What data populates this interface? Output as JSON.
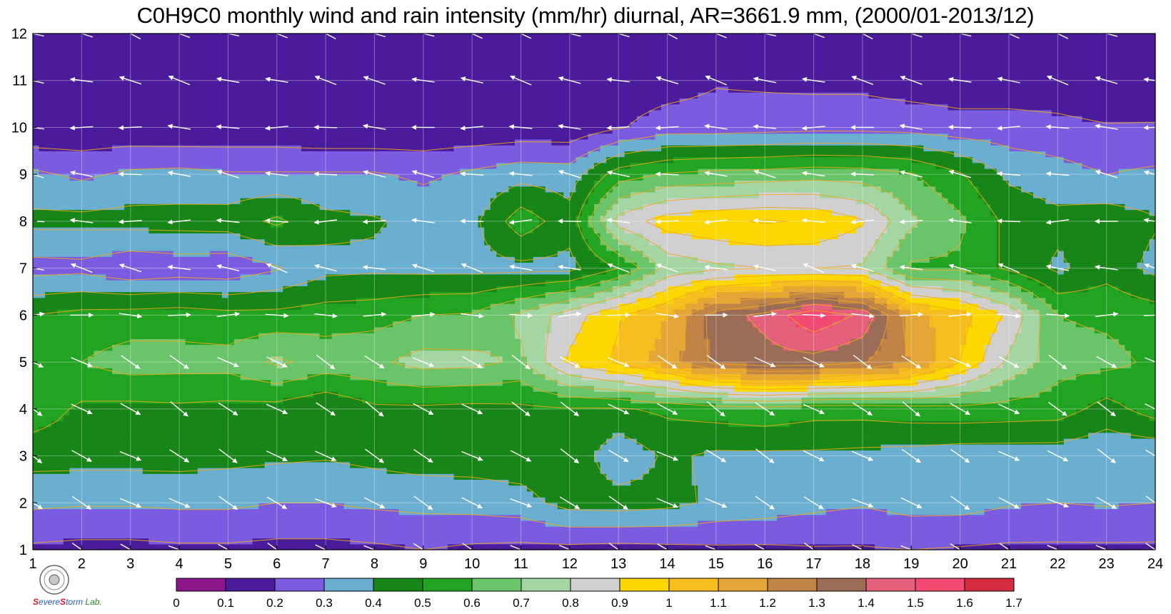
{
  "chart_data": {
    "type": "heatmap",
    "title": "C0H9C0 monthly wind and rain intensity (mm/hr) diurnal, AR=3661.9 mm, (2000/01-2013/12)",
    "x_ticks": [
      "1",
      "2",
      "3",
      "4",
      "5",
      "6",
      "7",
      "8",
      "9",
      "10",
      "11",
      "12",
      "13",
      "14",
      "15",
      "16",
      "17",
      "18",
      "19",
      "20",
      "21",
      "22",
      "23",
      "24"
    ],
    "y_ticks": [
      "1",
      "2",
      "3",
      "4",
      "5",
      "6",
      "7",
      "8",
      "9",
      "10",
      "11",
      "12"
    ],
    "xlim": [
      1,
      24
    ],
    "ylim": [
      1,
      12
    ],
    "x_hours": [
      1,
      2,
      3,
      4,
      5,
      6,
      7,
      8,
      9,
      10,
      11,
      12,
      13,
      14,
      15,
      16,
      17,
      18,
      19,
      20,
      21,
      22,
      23,
      24
    ],
    "y_months": [
      1,
      2,
      3,
      4,
      5,
      6,
      7,
      8,
      9,
      10,
      11,
      12
    ],
    "values": [
      [
        0.18,
        0.17,
        0.17,
        0.18,
        0.18,
        0.17,
        0.17,
        0.18,
        0.2,
        0.18,
        0.17,
        0.17,
        0.16,
        0.17,
        0.18,
        0.18,
        0.19,
        0.19,
        0.2,
        0.19,
        0.18,
        0.18,
        0.18,
        0.18
      ],
      [
        0.32,
        0.31,
        0.31,
        0.32,
        0.32,
        0.3,
        0.3,
        0.32,
        0.33,
        0.34,
        0.36,
        0.44,
        0.45,
        0.43,
        0.38,
        0.36,
        0.33,
        0.31,
        0.34,
        0.34,
        0.31,
        0.3,
        0.31,
        0.3
      ],
      [
        0.44,
        0.44,
        0.44,
        0.44,
        0.43,
        0.42,
        0.41,
        0.43,
        0.45,
        0.45,
        0.46,
        0.48,
        0.32,
        0.42,
        0.38,
        0.38,
        0.38,
        0.37,
        0.36,
        0.34,
        0.34,
        0.34,
        0.32,
        0.31
      ],
      [
        0.56,
        0.48,
        0.47,
        0.48,
        0.47,
        0.46,
        0.41,
        0.48,
        0.48,
        0.47,
        0.48,
        0.49,
        0.49,
        0.52,
        0.55,
        0.57,
        0.54,
        0.54,
        0.56,
        0.57,
        0.56,
        0.55,
        0.46,
        0.55
      ],
      [
        0.58,
        0.6,
        0.65,
        0.64,
        0.64,
        0.72,
        0.66,
        0.68,
        0.74,
        0.73,
        0.68,
        0.92,
        1.02,
        1.15,
        1.33,
        1.36,
        1.36,
        1.31,
        1.2,
        1.0,
        0.78,
        0.64,
        0.63,
        0.58
      ],
      [
        0.5,
        0.53,
        0.54,
        0.55,
        0.53,
        0.53,
        0.55,
        0.56,
        0.6,
        0.61,
        0.72,
        0.85,
        0.99,
        1.1,
        1.35,
        1.43,
        1.58,
        1.48,
        1.14,
        1.04,
        0.88,
        0.6,
        0.58,
        0.55
      ],
      [
        0.26,
        0.27,
        0.22,
        0.24,
        0.23,
        0.29,
        0.37,
        0.38,
        0.37,
        0.37,
        0.37,
        0.37,
        0.5,
        0.73,
        0.78,
        0.8,
        0.8,
        0.79,
        0.58,
        0.58,
        0.48,
        0.38,
        0.46,
        0.37
      ],
      [
        0.43,
        0.43,
        0.44,
        0.44,
        0.45,
        0.52,
        0.43,
        0.41,
        0.37,
        0.37,
        0.56,
        0.44,
        0.84,
        0.95,
        0.98,
        1.01,
        0.99,
        0.91,
        0.72,
        0.62,
        0.47,
        0.43,
        0.46,
        0.41
      ],
      [
        0.32,
        0.28,
        0.32,
        0.33,
        0.31,
        0.31,
        0.31,
        0.31,
        0.28,
        0.32,
        0.36,
        0.35,
        0.55,
        0.61,
        0.63,
        0.64,
        0.66,
        0.65,
        0.61,
        0.51,
        0.38,
        0.34,
        0.3,
        0.32
      ],
      [
        0.11,
        0.12,
        0.12,
        0.11,
        0.12,
        0.12,
        0.11,
        0.11,
        0.12,
        0.12,
        0.13,
        0.13,
        0.19,
        0.25,
        0.25,
        0.26,
        0.27,
        0.27,
        0.26,
        0.24,
        0.24,
        0.23,
        0.21,
        0.21
      ],
      [
        0.11,
        0.11,
        0.11,
        0.11,
        0.11,
        0.11,
        0.11,
        0.11,
        0.11,
        0.11,
        0.12,
        0.13,
        0.14,
        0.15,
        0.19,
        0.18,
        0.17,
        0.17,
        0.15,
        0.14,
        0.14,
        0.13,
        0.1,
        0.12
      ],
      [
        0.11,
        0.11,
        0.11,
        0.11,
        0.11,
        0.12,
        0.12,
        0.12,
        0.12,
        0.12,
        0.13,
        0.13,
        0.14,
        0.18,
        0.14,
        0.13,
        0.13,
        0.13,
        0.13,
        0.12,
        0.12,
        0.12,
        0.12,
        0.12
      ]
    ],
    "wind": {
      "note": "direction in degrees (math convention, 0=east, counter-clockwise) per month row 1-12",
      "row_angle_deg": [
        -28,
        -28,
        -30,
        -32,
        -30,
        0,
        165,
        180,
        170,
        178,
        165,
        160
      ]
    },
    "colorbar": {
      "levels": [
        "0",
        "0.1",
        "0.2",
        "0.3",
        "0.4",
        "0.5",
        "0.6",
        "0.7",
        "0.8",
        "0.9",
        "1",
        "1.1",
        "1.2",
        "1.3",
        "1.4",
        "1.5",
        "1.6",
        "1.7"
      ],
      "colors": [
        "#8b158b",
        "#4a1c9c",
        "#7b5ce0",
        "#6aaed0",
        "#178517",
        "#22a322",
        "#6ac46a",
        "#a3d6a3",
        "#d0d0d0",
        "#fdd800",
        "#f6be1e",
        "#e4a637",
        "#bf8446",
        "#9b6c56",
        "#e4607c",
        "#f24a72",
        "#d42b3e"
      ]
    },
    "contour_line_color": "#f0a818",
    "grid": true
  },
  "logo": {
    "lab_text_1": "S",
    "lab_text_2": "evere",
    "lab_text_3": "torm",
    "lab_text_4": "Lab."
  }
}
